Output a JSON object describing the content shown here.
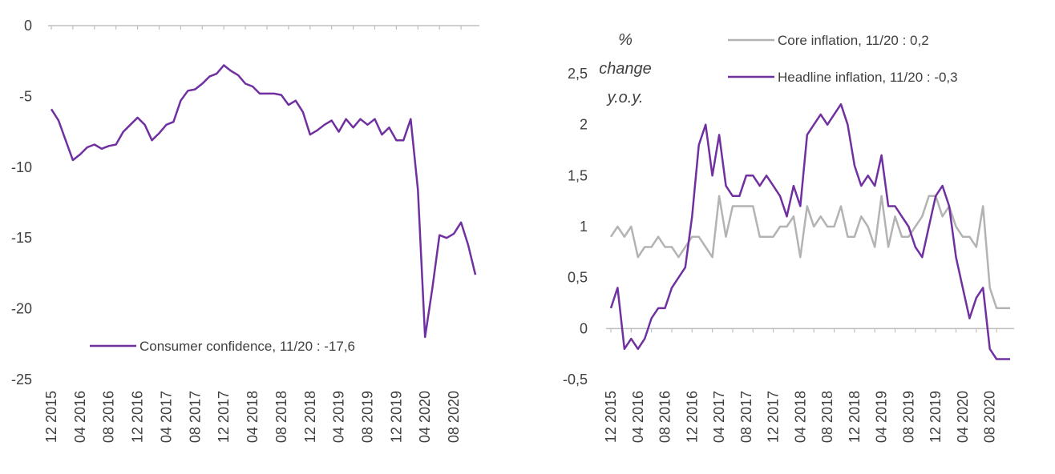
{
  "chart_data": [
    {
      "type": "line",
      "ylim": [
        -25,
        0
      ],
      "yticks": [
        "0",
        "-5",
        "-10",
        "-15",
        "-20",
        "-25"
      ],
      "ytick_values": [
        0,
        -5,
        -10,
        -15,
        -20,
        -25
      ],
      "xtick_labels": [
        "12 2015",
        "04 2016",
        "08 2016",
        "12 2016",
        "04 2017",
        "08 2017",
        "12 2017",
        "04 2018",
        "08 2018",
        "12 2018",
        "04 2019",
        "08 2019",
        "12 2019",
        "04 2020",
        "08 2020"
      ],
      "legend_position": "bottom-left",
      "grid": false,
      "colors": {
        "series": "#7030a0",
        "axis": "#bfbfbf"
      },
      "series": [
        {
          "name": "Consumer confidence, 11/20 : -17,6",
          "values": [
            -5.9,
            -6.7,
            -8.1,
            -9.5,
            -9.1,
            -8.6,
            -8.4,
            -8.7,
            -8.5,
            -8.4,
            -7.5,
            -7.0,
            -6.5,
            -7.0,
            -8.1,
            -7.6,
            -7.0,
            -6.8,
            -5.3,
            -4.6,
            -4.5,
            -4.1,
            -3.6,
            -3.4,
            -2.8,
            -3.2,
            -3.5,
            -4.1,
            -4.3,
            -4.8,
            -4.8,
            -4.8,
            -4.9,
            -5.6,
            -5.3,
            -6.1,
            -7.7,
            -7.4,
            -7.0,
            -6.7,
            -7.5,
            -6.6,
            -7.2,
            -6.6,
            -7.0,
            -6.6,
            -7.7,
            -7.2,
            -8.1,
            -8.1,
            -6.6,
            -11.6,
            -22.0,
            -18.6,
            -14.8,
            -15.0,
            -14.7,
            -13.9,
            -15.5,
            -17.6
          ]
        }
      ]
    },
    {
      "type": "line",
      "ylabel": "% change y.o.y.",
      "ylim": [
        -0.5,
        2.5
      ],
      "yticks": [
        "2,5",
        "2",
        "1,5",
        "1",
        "0,5",
        "0",
        "-0,5"
      ],
      "ytick_values": [
        2.5,
        2,
        1.5,
        1,
        0.5,
        0,
        -0.5
      ],
      "xtick_labels": [
        "12 2015",
        "04 2016",
        "08 2016",
        "12 2016",
        "04 2017",
        "08 2017",
        "12 2017",
        "04 2018",
        "08 2018",
        "12 2018",
        "04 2019",
        "08 2019",
        "12 2019",
        "04 2020",
        "08 2020"
      ],
      "legend_position": "top-right",
      "grid": false,
      "colors": {
        "core": "#b3b3b3",
        "headline": "#7030a0",
        "axis": "#bfbfbf"
      },
      "series": [
        {
          "name": "Core inflation, 11/20 : 0,2",
          "values": [
            0.9,
            1.0,
            0.9,
            1.0,
            0.7,
            0.8,
            0.8,
            0.9,
            0.8,
            0.8,
            0.7,
            0.8,
            0.9,
            0.9,
            0.8,
            0.7,
            1.3,
            0.9,
            1.2,
            1.2,
            1.2,
            1.2,
            0.9,
            0.9,
            0.9,
            1.0,
            1.0,
            1.1,
            0.7,
            1.2,
            1.0,
            1.1,
            1.0,
            1.0,
            1.2,
            0.9,
            0.9,
            1.1,
            1.0,
            0.8,
            1.3,
            0.8,
            1.1,
            0.9,
            0.9,
            1.0,
            1.1,
            1.3,
            1.3,
            1.1,
            1.2,
            1.0,
            0.9,
            0.9,
            0.8,
            1.2,
            0.4,
            0.2,
            0.2,
            0.2
          ]
        },
        {
          "name": "Headline inflation, 11/20 : -0,3",
          "values": [
            0.2,
            0.4,
            -0.2,
            -0.1,
            -0.2,
            -0.1,
            0.1,
            0.2,
            0.2,
            0.4,
            0.5,
            0.6,
            1.1,
            1.8,
            2.0,
            1.5,
            1.9,
            1.4,
            1.3,
            1.3,
            1.5,
            1.5,
            1.4,
            1.5,
            1.4,
            1.3,
            1.1,
            1.4,
            1.2,
            1.9,
            2.0,
            2.1,
            2.0,
            2.1,
            2.2,
            2.0,
            1.6,
            1.4,
            1.5,
            1.4,
            1.7,
            1.2,
            1.2,
            1.1,
            1.0,
            0.8,
            0.7,
            1.0,
            1.3,
            1.4,
            1.2,
            0.7,
            0.4,
            0.1,
            0.3,
            0.4,
            -0.2,
            -0.3,
            -0.3,
            -0.3
          ]
        }
      ]
    }
  ]
}
